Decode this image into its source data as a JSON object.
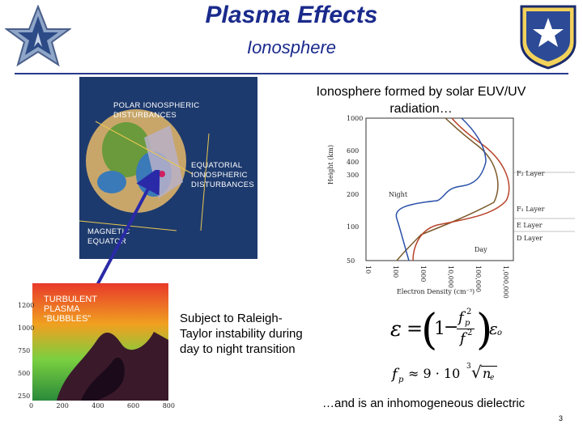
{
  "slide": {
    "title": "Plasma Effects",
    "subtitle": "Ionosphere",
    "page_number": "3"
  },
  "globe_panel": {
    "polar_label_1": "POLAR IONOSPHERIC",
    "polar_label_2": "DISTURBANCES",
    "equatorial_label_1": "EQUATORIAL",
    "equatorial_label_2": "IONOSPHERIC",
    "equatorial_label_3": "DISTURBANCES",
    "magnetic_label_1": "MAGNETIC",
    "magnetic_label_2": "EQUATOR"
  },
  "bubble_panel": {
    "label_1": "TURBULENT",
    "label_2": "PLASMA",
    "label_3": "“BUBBLES”",
    "y_ticks": [
      "1200",
      "1000",
      "750",
      "500",
      "250"
    ],
    "x_ticks": [
      "0",
      "200",
      "400",
      "600",
      "800"
    ]
  },
  "ionosphere_chart": {
    "heading_line1": "Ionosphere formed by solar EUV/UV",
    "heading_line2": "radiation…",
    "y_label": "Height (km)",
    "x_label": "Electron Density (cm⁻³)",
    "y_ticks": [
      "1000",
      "600",
      "400",
      "300",
      "200",
      "100",
      "50"
    ],
    "x_ticks": [
      "10",
      "100",
      "1000",
      "10,000",
      "100,000",
      "1,000,000"
    ],
    "layer_f2": "F₂ Layer",
    "layer_f1": "F₁ Layer",
    "layer_e": "E Layer",
    "layer_d": "D Layer",
    "night_label": "Night",
    "day_label": "Day"
  },
  "text": {
    "instability": "Subject to Raleigh-Taylor instability during day to night transition",
    "dielectric": "…and is an inhomogeneous dielectric"
  },
  "formulas": {
    "eps": "ε",
    "eq": "=",
    "one": "1",
    "minus": "−",
    "fp_num": "f",
    "fp_sub": "p",
    "exp2": "2",
    "f_den": "f",
    "eps0": "ε",
    "eps0_sub": "o",
    "fp2": "f",
    "fp2_sub": "p",
    "approx": "≈ 9 · 10",
    "exp3": "3",
    "n": "n",
    "n_sub": "e"
  },
  "colors": {
    "title_blue": "#1a2a8c",
    "globe_bg": "#1d3a6e",
    "curve_red": "#b8432a",
    "curve_blue": "#2a4fa8",
    "curve_brown": "#7a5a2a"
  }
}
